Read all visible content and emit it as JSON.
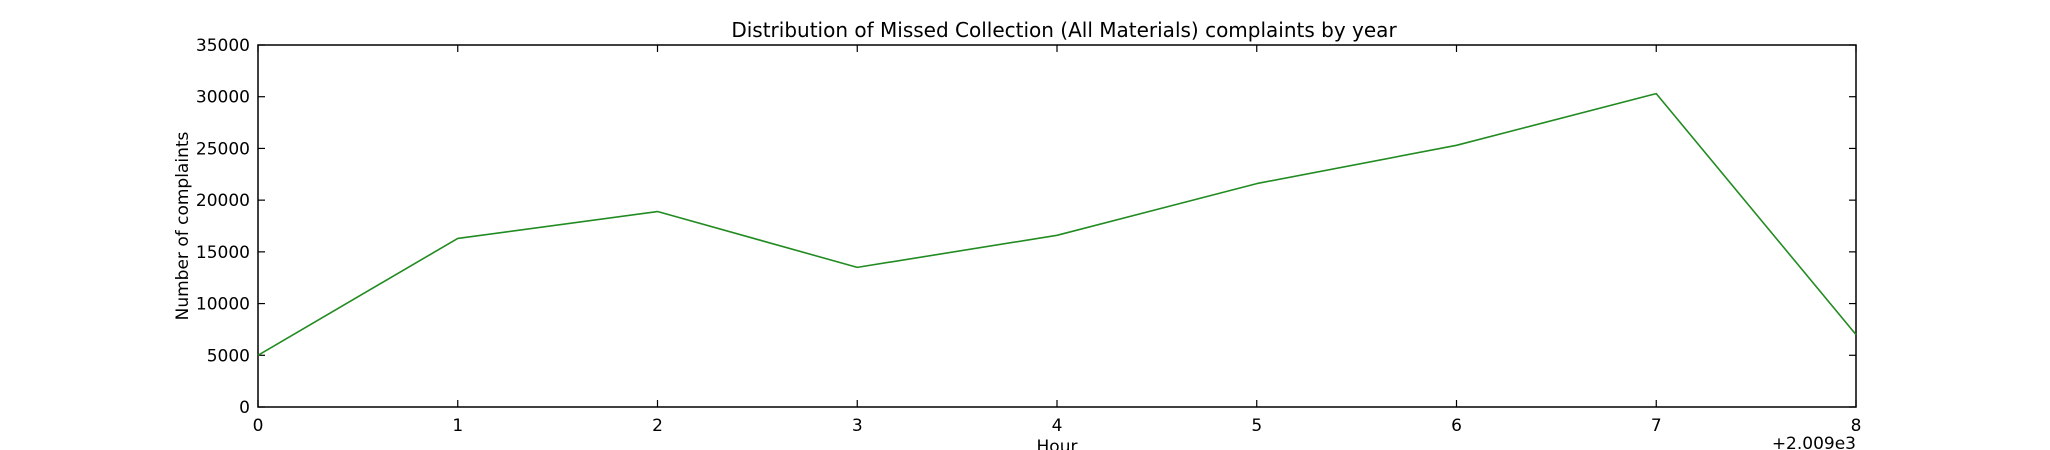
{
  "chart_data": {
    "type": "line",
    "title": "Distribution of  Missed Collection (All Materials) complaints by year",
    "xlabel": "Hour",
    "ylabel": "Number of complaints",
    "x_offset_label": "+2.009e3",
    "xlim": [
      0,
      8
    ],
    "ylim": [
      0,
      35000
    ],
    "x_ticks": [
      0,
      1,
      2,
      3,
      4,
      5,
      6,
      7,
      8
    ],
    "x_tick_labels": [
      "0",
      "1",
      "2",
      "3",
      "4",
      "5",
      "6",
      "7",
      "8"
    ],
    "y_ticks": [
      0,
      5000,
      10000,
      15000,
      20000,
      25000,
      30000,
      35000
    ],
    "y_tick_labels": [
      "0",
      "5000",
      "10000",
      "15000",
      "20000",
      "25000",
      "30000",
      "35000"
    ],
    "grid": false,
    "series": [
      {
        "color": "#228b22",
        "x": [
          0,
          1,
          2,
          3,
          4,
          5,
          6,
          7,
          8
        ],
        "values": [
          5000,
          16300,
          18900,
          13500,
          16600,
          21600,
          25300,
          30300,
          7000
        ]
      }
    ]
  }
}
